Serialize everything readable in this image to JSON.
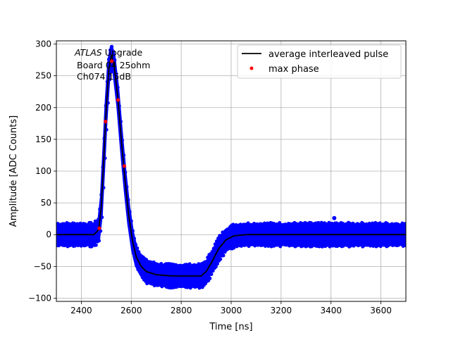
{
  "chart_data": {
    "type": "scatter",
    "xlabel": "Time [ns]",
    "ylabel": "Amplitude [ADC Counts]",
    "xlim": [
      2300,
      3700
    ],
    "ylim": [
      -105,
      305
    ],
    "x_ticks": [
      2400,
      2600,
      2800,
      3000,
      3200,
      3400,
      3600
    ],
    "y_ticks": [
      -100,
      -50,
      0,
      50,
      100,
      150,
      200,
      250,
      300
    ],
    "grid": true,
    "legend_position": "top-right",
    "annotation": {
      "italic_part": "ATLAS",
      "rest": "Upgrade",
      "line2": "Board 04 25ohm",
      "line3": "Ch074 15dB"
    },
    "series": [
      {
        "name": "average interleaved pulse",
        "color": "#000000",
        "style": "line",
        "points": [
          [
            2300,
            0
          ],
          [
            2450,
            0
          ],
          [
            2470,
            8
          ],
          [
            2480,
            45
          ],
          [
            2490,
            120
          ],
          [
            2500,
            200
          ],
          [
            2510,
            260
          ],
          [
            2520,
            282
          ],
          [
            2530,
            270
          ],
          [
            2545,
            220
          ],
          [
            2560,
            150
          ],
          [
            2575,
            85
          ],
          [
            2590,
            30
          ],
          [
            2605,
            -10
          ],
          [
            2620,
            -35
          ],
          [
            2640,
            -50
          ],
          [
            2660,
            -58
          ],
          [
            2700,
            -63
          ],
          [
            2760,
            -65
          ],
          [
            2880,
            -65
          ],
          [
            2900,
            -58
          ],
          [
            2920,
            -45
          ],
          [
            2950,
            -22
          ],
          [
            2980,
            -8
          ],
          [
            3010,
            -2
          ],
          [
            3060,
            0
          ],
          [
            3700,
            0
          ]
        ]
      },
      {
        "name": "max phase",
        "color": "#ff0000",
        "style": "markers",
        "points": [
          [
            2472,
            10
          ],
          [
            2497,
            178
          ],
          [
            2522,
            273
          ],
          [
            2547,
            212
          ],
          [
            2572,
            108
          ]
        ]
      },
      {
        "name": "",
        "color": "#0000ff",
        "style": "scatter-band",
        "band_halfwidth": 14,
        "outliers": [
          [
            3413,
            26
          ]
        ]
      }
    ]
  }
}
